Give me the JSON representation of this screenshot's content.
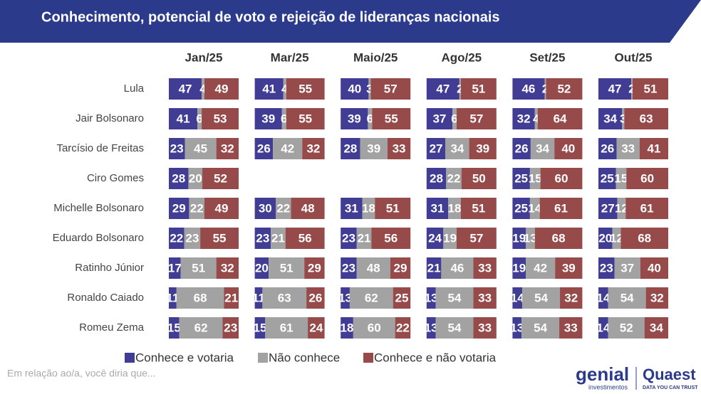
{
  "chart_data": {
    "type": "stacked_bar",
    "title": "Conhecimento, potencial de voto e rejeição de lideranças nacionais",
    "panels": [
      "Jan/25",
      "Mar/25",
      "Maio/25",
      "Ago/25",
      "Set/25",
      "Out/25"
    ],
    "categories": [
      "Lula",
      "Jair Bolsonaro",
      "Tarcísio de Freitas",
      "Ciro Gomes",
      "Michelle Bolsonaro",
      "Eduardo Bolsonaro",
      "Ratinho Júnior",
      "Ronaldo Caiado",
      "Romeu Zema"
    ],
    "xlim": [
      0,
      100
    ],
    "series": [
      {
        "name": "Conhece e votaria",
        "color": "#423d94",
        "values": [
          [
            47,
            41,
            23,
            28,
            29,
            22,
            17,
            11,
            15
          ],
          [
            41,
            39,
            26,
            null,
            30,
            23,
            20,
            11,
            15
          ],
          [
            40,
            39,
            28,
            null,
            31,
            23,
            23,
            13,
            18
          ],
          [
            47,
            37,
            27,
            28,
            31,
            24,
            21,
            13,
            13
          ],
          [
            46,
            32,
            26,
            25,
            25,
            19,
            19,
            14,
            13
          ],
          [
            47,
            34,
            26,
            25,
            27,
            20,
            23,
            14,
            14
          ]
        ]
      },
      {
        "name": "Não conhece",
        "color": "#a2a2a2",
        "values": [
          [
            4,
            6,
            45,
            20,
            22,
            23,
            51,
            68,
            62
          ],
          [
            4,
            6,
            42,
            null,
            22,
            21,
            51,
            63,
            61
          ],
          [
            3,
            6,
            39,
            null,
            18,
            21,
            48,
            62,
            60
          ],
          [
            2,
            6,
            34,
            22,
            18,
            19,
            46,
            54,
            54
          ],
          [
            2,
            4,
            34,
            15,
            14,
            13,
            42,
            54,
            54
          ],
          [
            2,
            3,
            33,
            15,
            12,
            12,
            37,
            54,
            52
          ]
        ]
      },
      {
        "name": "Conhece e não votaria",
        "color": "#964a4a",
        "values": [
          [
            49,
            53,
            32,
            52,
            49,
            55,
            32,
            21,
            23
          ],
          [
            55,
            55,
            32,
            null,
            48,
            56,
            29,
            26,
            24
          ],
          [
            57,
            55,
            33,
            null,
            51,
            56,
            29,
            25,
            22
          ],
          [
            51,
            57,
            39,
            50,
            51,
            57,
            33,
            33,
            33
          ],
          [
            52,
            64,
            40,
            60,
            61,
            68,
            39,
            32,
            33
          ],
          [
            51,
            63,
            41,
            60,
            61,
            68,
            40,
            32,
            34
          ]
        ]
      }
    ],
    "footnote": "Em relação ao/a, você diria que..."
  },
  "branding": {
    "genial": "genial",
    "genial_sub": "investimentos",
    "quaest": "Quaest",
    "quaest_sub": "DATA YOU CAN TRUST"
  }
}
